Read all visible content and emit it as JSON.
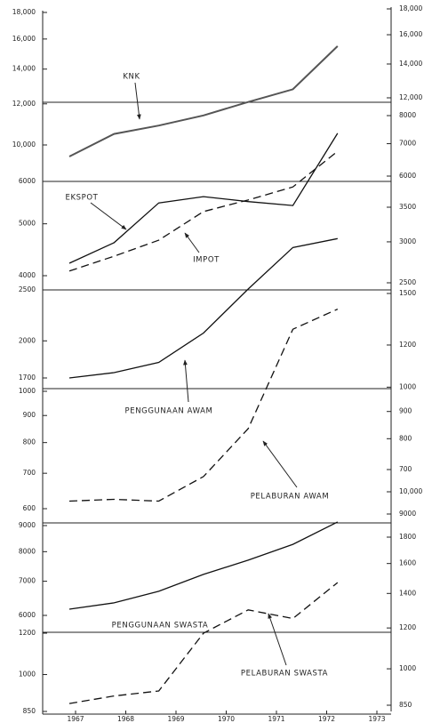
{
  "chart_data": [
    {
      "type": "line",
      "log": true,
      "color": "#111111",
      "ylim": [
        10000,
        18000
      ],
      "yticks": [
        {
          "value": 10000,
          "label": "10,000"
        },
        {
          "value": 12000,
          "label": "12,000"
        },
        {
          "value": 14000,
          "label": "14,000"
        },
        {
          "value": 16000,
          "label": "16,000"
        },
        {
          "value": 18000,
          "label": "18,000"
        }
      ],
      "y2lim": [
        12000,
        18000
      ],
      "y2ticks": [
        {
          "value": 12000,
          "label": "12,000"
        },
        {
          "value": 14000,
          "label": "14,000"
        },
        {
          "value": 16000,
          "label": "16,000"
        },
        {
          "value": 18000,
          "label": "18,000"
        }
      ],
      "series": [
        {
          "name": "KNK",
          "color": "#555555",
          "style": "solid",
          "values": [
            9500,
            10500,
            10900,
            11400,
            12100,
            12800,
            15500
          ]
        }
      ]
    },
    {
      "type": "line",
      "log": true,
      "color": "#111111",
      "ylim": [
        4000,
        6000
      ],
      "yticks": [
        4000,
        5000,
        6000
      ],
      "y2lim": [
        6000,
        8000
      ],
      "y2ticks": [
        6000,
        7000,
        8000
      ],
      "series": [
        {
          "name": "EKSPOT",
          "color": "#111111",
          "style": "solid",
          "values": [
            4220,
            4610,
            5470,
            5620,
            5500,
            5410,
            7380
          ]
        },
        {
          "name": "IMPOT",
          "color": "#111111",
          "style": "dashed",
          "values": [
            4080,
            4350,
            4660,
            5270,
            5540,
            5860,
            6830
          ]
        }
      ]
    },
    {
      "type": "line",
      "log": true,
      "color": "#111111",
      "ylim": [
        1700,
        2500
      ],
      "yticks": [
        1700,
        2000,
        2500
      ],
      "y2lim": [
        2500,
        3500
      ],
      "y2ticks": [
        2500,
        3000,
        3500
      ],
      "series": [
        {
          "name": "PENGGUNAAN AWAM",
          "color": "#111111",
          "style": "solid",
          "values": [
            1700,
            1740,
            1820,
            2070,
            2510,
            3010,
            3130
          ]
        }
      ]
    },
    {
      "type": "line",
      "log": true,
      "color": "#111111",
      "ylim": [
        600,
        1000
      ],
      "yticks": [
        600,
        700,
        800,
        900,
        1000
      ],
      "y2lim": [
        700,
        1500
      ],
      "y2ticks": [
        700,
        800,
        900,
        1000,
        1200,
        1500
      ],
      "series": [
        {
          "name": "PELABURAN AWAM",
          "color": "#111111",
          "style": "dashed",
          "values": [
            620,
            625,
            620,
            690,
            850,
            1310,
            1430
          ]
        }
      ]
    },
    {
      "type": "line",
      "log": true,
      "color": "#111111",
      "ylim": [
        6000,
        9000
      ],
      "yticks": [
        6000,
        7000,
        8000,
        9000
      ],
      "y2lim": [
        9000,
        10000
      ],
      "y2ticks": [
        9000,
        {
          "value": 10000,
          "label": "10,000"
        }
      ],
      "series": [
        {
          "name": "PENGGUNAAN SWASTA",
          "color": "#111111",
          "style": "solid",
          "values": [
            6170,
            6350,
            6690,
            7220,
            7700,
            8270,
            9150
          ]
        }
      ]
    },
    {
      "type": "line",
      "log": true,
      "color": "#111111",
      "ylim": [
        850,
        1200
      ],
      "yticks": [
        850,
        1000,
        1200
      ],
      "y2lim": [
        850,
        1800
      ],
      "y2ticks": [
        850,
        1000,
        1200,
        1400,
        1600,
        1800
      ],
      "categories": [
        "1967",
        "1968",
        "1969",
        "1970",
        "1971",
        "1972",
        "1973"
      ],
      "series": [
        {
          "name": "PELABURAN SWASTA",
          "color": "#111111",
          "style": "dashed",
          "values": [
            880,
            910,
            930,
            1200,
            1330,
            1280,
            1500
          ]
        }
      ]
    }
  ]
}
